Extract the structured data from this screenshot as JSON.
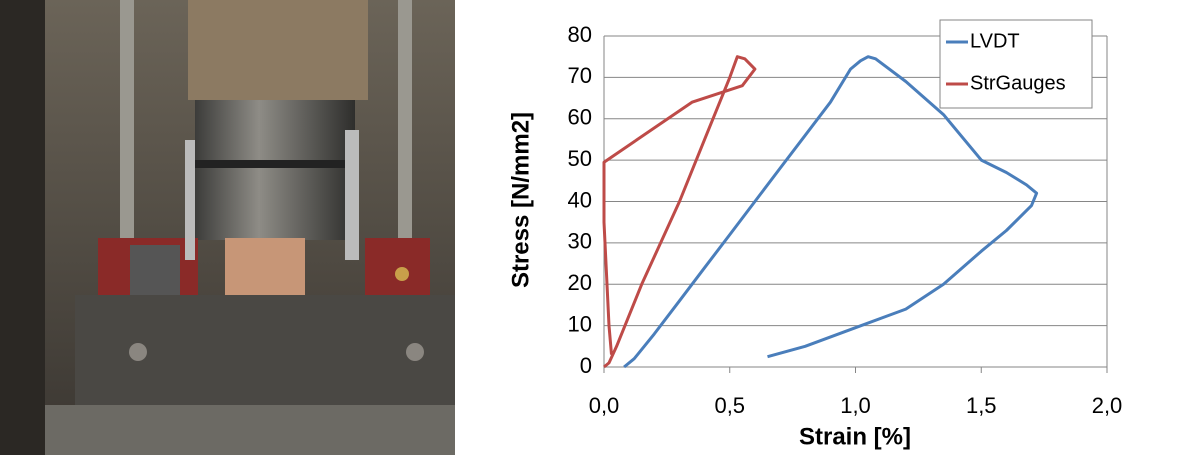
{
  "chart_data": {
    "type": "line",
    "x_label": "Strain [%]",
    "y_label": "Stress [N/mm2]",
    "xlim": [
      0,
      2
    ],
    "ylim": [
      0,
      80
    ],
    "xticks": [
      {
        "value": 0,
        "label": "0,0"
      },
      {
        "value": 0.5,
        "label": "0,5"
      },
      {
        "value": 1,
        "label": "1,0"
      },
      {
        "value": 1.5,
        "label": "1,5"
      },
      {
        "value": 2,
        "label": "2,0"
      }
    ],
    "yticks": [
      0,
      10,
      20,
      30,
      40,
      50,
      60,
      70,
      80
    ],
    "grid": true,
    "legend": "top-right",
    "series": [
      {
        "name": "LVDT",
        "color": "#4a7ebb",
        "x": [
          0.08,
          0.12,
          0.2,
          0.3,
          0.4,
          0.5,
          0.6,
          0.7,
          0.8,
          0.9,
          0.98,
          1.02,
          1.05,
          1.08,
          1.2,
          1.35,
          1.5,
          1.6,
          1.68,
          1.72,
          1.7,
          1.6,
          1.5,
          1.35,
          1.2,
          1.0,
          0.8,
          0.65
        ],
        "values": [
          0,
          2,
          8,
          16,
          24,
          32,
          40,
          48,
          56,
          64,
          72,
          74,
          75,
          74.5,
          69,
          61,
          50,
          47,
          44,
          42,
          39,
          33,
          28,
          20,
          14,
          9.5,
          5,
          2.5
        ]
      },
      {
        "name": "StrGauges",
        "color": "#be4b48",
        "x": [
          0.0,
          0.02,
          0.05,
          0.15,
          0.3,
          0.4,
          0.5,
          0.53,
          0.56,
          0.6,
          0.55,
          0.35,
          0.0,
          0.0,
          0.02,
          0.03
        ],
        "values": [
          0,
          1,
          5,
          20,
          40,
          55,
          70,
          75,
          74.5,
          72,
          68,
          64,
          49.5,
          35,
          10,
          3
        ]
      }
    ]
  }
}
